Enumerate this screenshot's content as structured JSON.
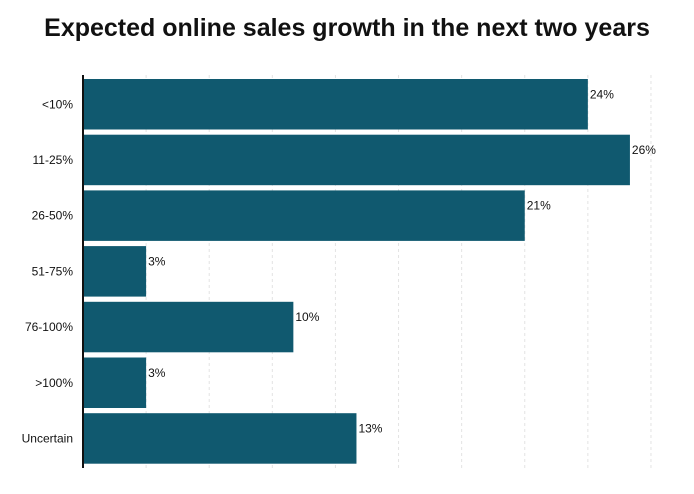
{
  "chart_data": {
    "type": "bar",
    "orientation": "horizontal",
    "title": "Expected online sales growth in the next two years",
    "categories": [
      "<10%",
      "11-25%",
      "26-50%",
      "51-75%",
      "76-100%",
      ">100%",
      "Uncertain"
    ],
    "values": [
      24,
      26,
      21,
      3,
      10,
      3,
      13
    ],
    "value_labels": [
      "24%",
      "26%",
      "21%",
      "3%",
      "10%",
      "3%",
      "13%"
    ],
    "xlim": [
      0,
      28
    ],
    "grid": "vertical dashed",
    "bar_color": "#10596f",
    "grid_color": "#e3e3e3",
    "axis_color": "#111111"
  }
}
